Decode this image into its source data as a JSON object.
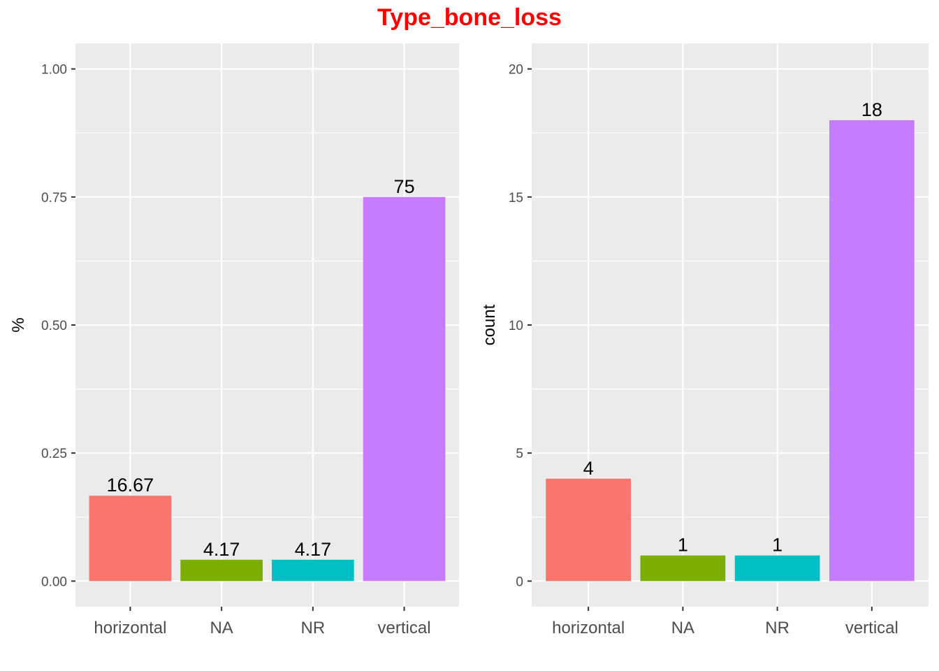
{
  "title": "Type_bone_loss",
  "colors": {
    "title": "#ff0000",
    "panel_bg": "#ebebeb",
    "grid": "#ffffff",
    "axis_text": "#4d4d4d",
    "categories": [
      "#f8766d",
      "#7cae00",
      "#00bfc4",
      "#c77cff"
    ]
  },
  "chart_data": [
    {
      "type": "bar",
      "categories": [
        "horizontal",
        "NA",
        "NR",
        "vertical"
      ],
      "values": [
        0.1667,
        0.0417,
        0.0417,
        0.75
      ],
      "data_labels": [
        "16.67",
        "4.17",
        "4.17",
        "75"
      ],
      "xlabel": "",
      "ylabel": "%",
      "ylim": [
        -0.05,
        1.05
      ],
      "yticks": [
        0,
        0.25,
        0.5,
        0.75,
        1
      ],
      "ytick_labels": [
        "0.00",
        "0.25",
        "0.50",
        "0.75",
        "1.00"
      ],
      "grid": true,
      "legend": "none"
    },
    {
      "type": "bar",
      "categories": [
        "horizontal",
        "NA",
        "NR",
        "vertical"
      ],
      "values": [
        4,
        1,
        1,
        18
      ],
      "data_labels": [
        "4",
        "1",
        "1",
        "18"
      ],
      "xlabel": "",
      "ylabel": "count",
      "ylim": [
        -1,
        21
      ],
      "yticks": [
        0,
        5,
        10,
        15,
        20
      ],
      "ytick_labels": [
        "0",
        "5",
        "10",
        "15",
        "20"
      ],
      "grid": true,
      "legend": "none"
    }
  ]
}
